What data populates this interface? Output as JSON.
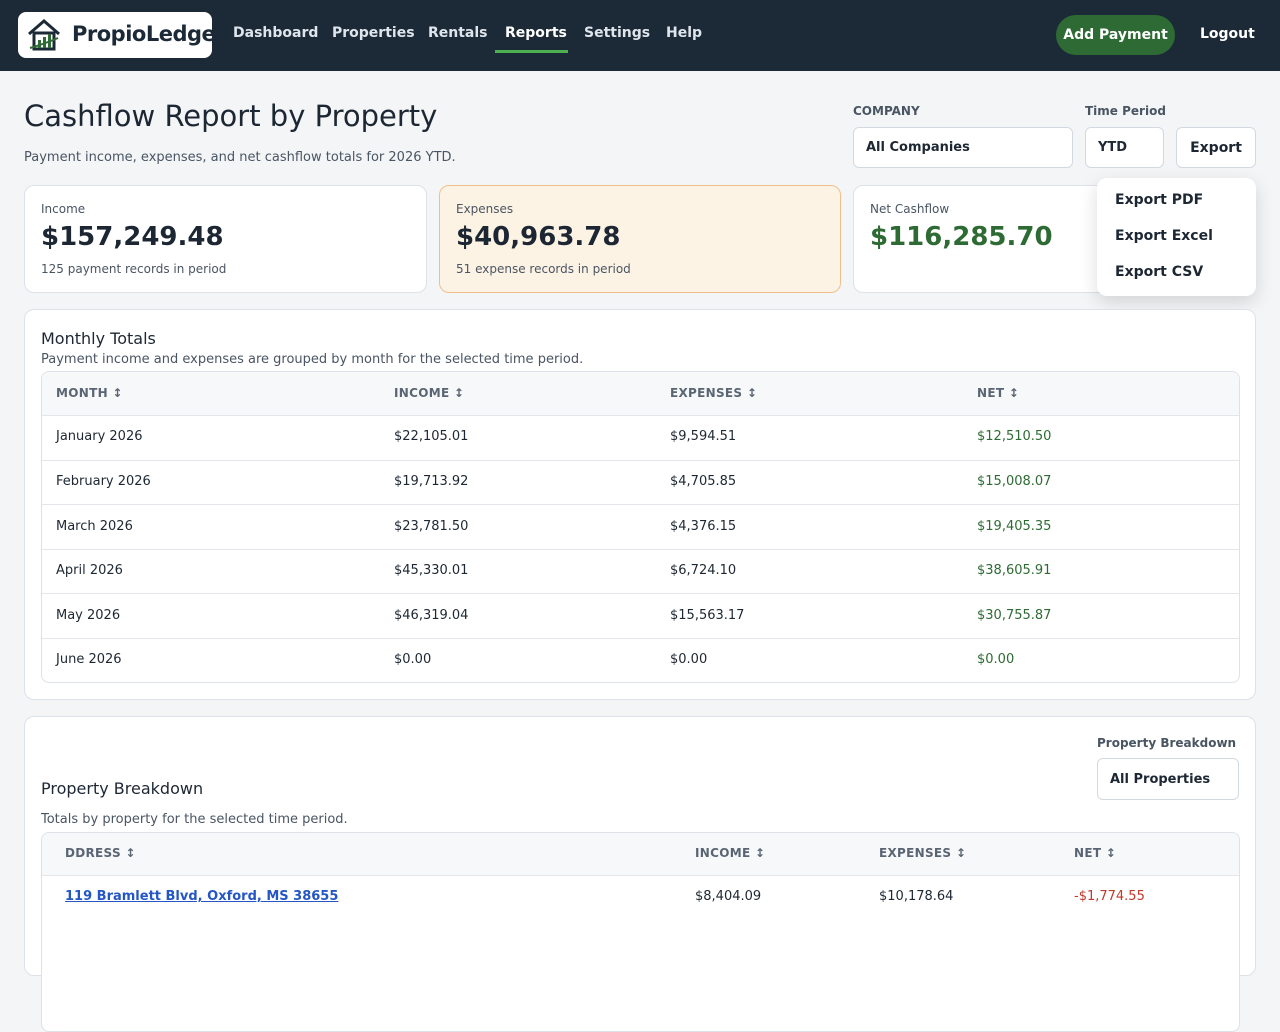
{
  "nav": {
    "brand": "PropioLedger",
    "links": [
      "Dashboard",
      "Properties",
      "Rentals",
      "Reports",
      "Settings",
      "Help"
    ],
    "active_link": 3,
    "primary_action": "Add Payment",
    "logout": "Logout"
  },
  "header": {
    "title": "Cashflow Report by Property",
    "subtitle": "Payment income, expenses, and net cashflow totals for 2026 YTD."
  },
  "filters": {
    "company_label": "COMPANY",
    "company_value": "All Companies",
    "period_label": "Time Period",
    "period_value": "YTD",
    "export": "Export",
    "export_menu": [
      "Export PDF",
      "Export Excel",
      "Export CSV"
    ]
  },
  "cards": [
    {
      "label": "Income",
      "value": "$157,249.48",
      "note": "125 payment records in period"
    },
    {
      "label": "Expenses",
      "value": "$40,963.78",
      "note": "51 expense records in period"
    },
    {
      "label": "Net Cashflow",
      "value": "$116,285.70"
    }
  ],
  "monthly": {
    "title": "Monthly Totals",
    "subtitle": "Payment income and expenses are grouped by month for the selected time period.",
    "columns": [
      "MONTH ↕",
      "INCOME ↕",
      "EXPENSES ↕",
      "NET ↕"
    ],
    "rows": [
      [
        "January 2026",
        "$22,105.01",
        "$9,594.51",
        "$12,510.50"
      ],
      [
        "February 2026",
        "$19,713.92",
        "$4,705.85",
        "$15,008.07"
      ],
      [
        "March 2026",
        "$23,781.50",
        "$4,376.15",
        "$19,405.35"
      ],
      [
        "April 2026",
        "$45,330.01",
        "$6,724.10",
        "$38,605.91"
      ],
      [
        "May 2026",
        "$46,319.04",
        "$15,563.17",
        "$30,755.87"
      ],
      [
        "June 2026",
        "$0.00",
        "$0.00",
        "$0.00"
      ]
    ]
  },
  "breakdown": {
    "title": "Property Breakdown",
    "subtitle": "Totals by property for the selected time period.",
    "filter_label": "Property Breakdown",
    "filter_value": "All Properties",
    "columns": [
      "DDRESS ↕",
      "INCOME ↕",
      "EXPENSES ↕",
      "NET ↕"
    ],
    "rows": [
      [
        "119 Bramlett Blvd, Oxford, MS 38655",
        "$8,404.09",
        "$10,178.64",
        "-$1,774.55"
      ]
    ]
  }
}
